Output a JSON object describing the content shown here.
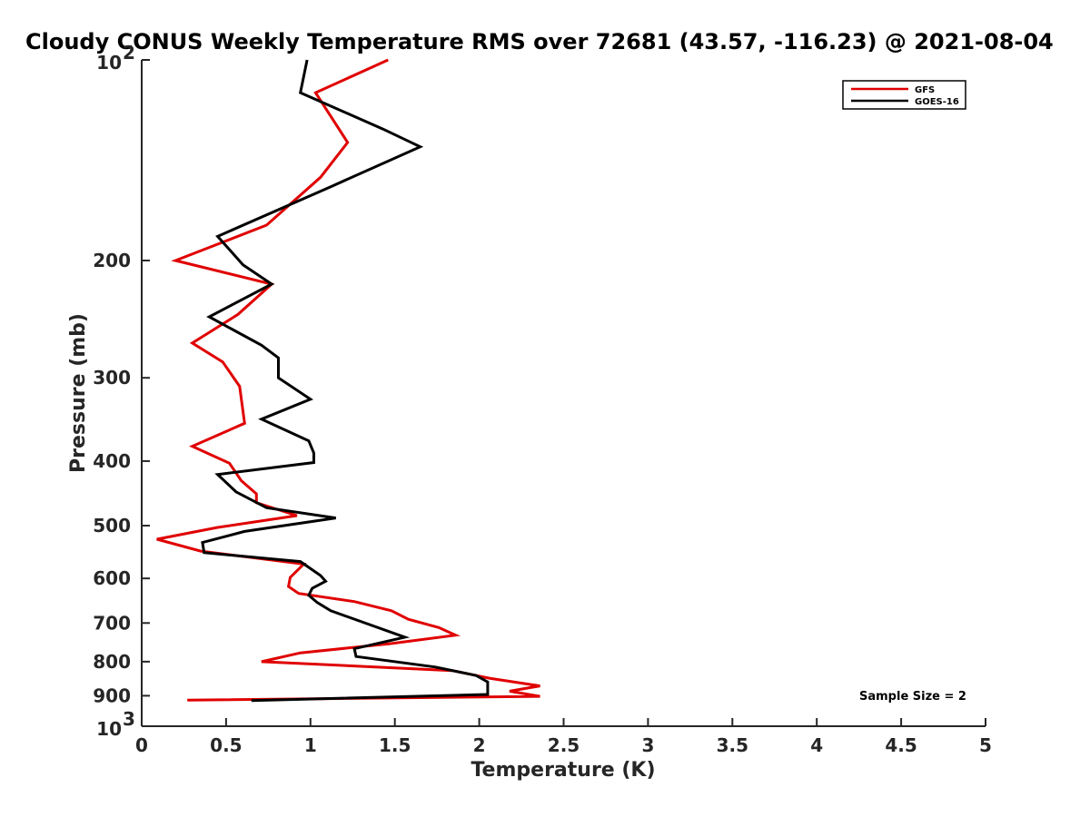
{
  "chart_data": {
    "type": "line",
    "title": "Cloudy CONUS Weekly Temperature RMS over 72681 (43.57, -116.23) @ 2021-08-04",
    "xlabel": "Temperature (K)",
    "ylabel": "Pressure (mb)",
    "xlim": [
      0,
      5
    ],
    "ylim": [
      100,
      1000
    ],
    "yscale": "log",
    "y_reversed": true,
    "xticks": [
      {
        "value": 0,
        "label": "0"
      },
      {
        "value": 0.5,
        "label": "0.5"
      },
      {
        "value": 1,
        "label": "1"
      },
      {
        "value": 1.5,
        "label": "1.5"
      },
      {
        "value": 2,
        "label": "2"
      },
      {
        "value": 2.5,
        "label": "2.5"
      },
      {
        "value": 3,
        "label": "3"
      },
      {
        "value": 3.5,
        "label": "3.5"
      },
      {
        "value": 4,
        "label": "4"
      },
      {
        "value": 4.5,
        "label": "4.5"
      },
      {
        "value": 5,
        "label": "5"
      }
    ],
    "yticks": [
      {
        "value": 100,
        "base": "10",
        "exp": "2"
      },
      {
        "value": 200,
        "label": "200"
      },
      {
        "value": 300,
        "label": "300"
      },
      {
        "value": 400,
        "label": "400"
      },
      {
        "value": 500,
        "label": "500"
      },
      {
        "value": 600,
        "label": "600"
      },
      {
        "value": 700,
        "label": "700"
      },
      {
        "value": 800,
        "label": "800"
      },
      {
        "value": 900,
        "label": "900"
      },
      {
        "value": 1000,
        "base": "10",
        "exp": "3"
      }
    ],
    "grid": false,
    "legend_position": "top-right",
    "series": [
      {
        "name": "GFS",
        "color": "#e00000",
        "points": [
          [
            1.46,
            100
          ],
          [
            1.03,
            112
          ],
          [
            1.22,
            133
          ],
          [
            1.06,
            150
          ],
          [
            0.74,
            177
          ],
          [
            0.2,
            200
          ],
          [
            0.77,
            217
          ],
          [
            0.57,
            241
          ],
          [
            0.3,
            266
          ],
          [
            0.48,
            284
          ],
          [
            0.58,
            309
          ],
          [
            0.61,
            351
          ],
          [
            0.3,
            380
          ],
          [
            0.52,
            403
          ],
          [
            0.59,
            428
          ],
          [
            0.68,
            448
          ],
          [
            0.68,
            462
          ],
          [
            0.92,
            483
          ],
          [
            0.45,
            503
          ],
          [
            0.09,
            524
          ],
          [
            0.35,
            546
          ],
          [
            0.96,
            571
          ],
          [
            0.88,
            598
          ],
          [
            0.87,
            617
          ],
          [
            0.93,
            632
          ],
          [
            1.26,
            650
          ],
          [
            1.48,
            671
          ],
          [
            1.58,
            691
          ],
          [
            1.76,
            711
          ],
          [
            1.86,
            730
          ],
          [
            1.47,
            752
          ],
          [
            0.94,
            776
          ],
          [
            0.71,
            800
          ],
          [
            1.84,
            825
          ],
          [
            2.06,
            847
          ],
          [
            2.36,
            870
          ],
          [
            2.18,
            886
          ],
          [
            2.36,
            902
          ],
          [
            0.27,
            914
          ]
        ]
      },
      {
        "name": "GOES-16",
        "color": "#000000",
        "points": [
          [
            0.98,
            100
          ],
          [
            0.94,
            112
          ],
          [
            1.43,
            127
          ],
          [
            1.65,
            135
          ],
          [
            1.12,
            155
          ],
          [
            0.45,
            184
          ],
          [
            0.6,
            203
          ],
          [
            0.77,
            217
          ],
          [
            0.4,
            243
          ],
          [
            0.71,
            268
          ],
          [
            0.81,
            280
          ],
          [
            0.81,
            300
          ],
          [
            1.0,
            323
          ],
          [
            0.71,
            346
          ],
          [
            0.99,
            373
          ],
          [
            1.02,
            389
          ],
          [
            1.02,
            402
          ],
          [
            0.45,
            419
          ],
          [
            0.56,
            445
          ],
          [
            0.74,
            470
          ],
          [
            1.15,
            487
          ],
          [
            0.61,
            510
          ],
          [
            0.36,
            530
          ],
          [
            0.37,
            549
          ],
          [
            0.94,
            566
          ],
          [
            1.06,
            594
          ],
          [
            1.09,
            606
          ],
          [
            1.01,
            621
          ],
          [
            0.99,
            636
          ],
          [
            1.04,
            652
          ],
          [
            1.12,
            671
          ],
          [
            1.56,
            735
          ],
          [
            1.26,
            765
          ],
          [
            1.27,
            786
          ],
          [
            1.74,
            815
          ],
          [
            1.98,
            839
          ],
          [
            2.05,
            858
          ],
          [
            2.05,
            878
          ],
          [
            2.05,
            896
          ],
          [
            0.65,
            915
          ]
        ]
      }
    ],
    "annotation": "Sample Size = 2"
  }
}
